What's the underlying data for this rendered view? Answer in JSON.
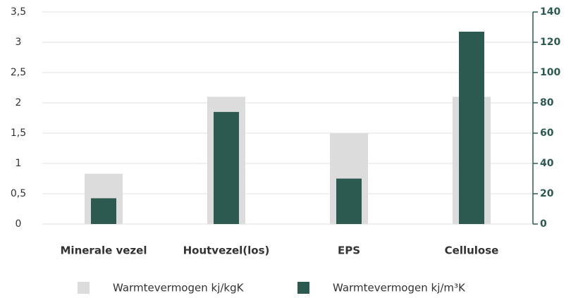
{
  "chart_data": {
    "type": "bar",
    "categories": [
      "Minerale vezel",
      "Houtvezel(los)",
      "EPS",
      "Cellulose"
    ],
    "series": [
      {
        "name": "Warmtevermogen kj/kgK",
        "color": "#dcdcdc",
        "values": [
          0.83,
          2.1,
          1.5,
          2.1
        ]
      },
      {
        "name": "Warmtevermogen kj/m³K",
        "color": "#2c5a50",
        "values": [
          17,
          74,
          30,
          127
        ],
        "axis": "y2"
      }
    ],
    "ylim": [
      0,
      3.5
    ],
    "yticks": [
      0,
      {
        "value": 0.5,
        "label": "0,5"
      },
      1,
      {
        "value": 1.5,
        "label": "1,5"
      },
      2,
      {
        "value": 2.5,
        "label": "2,5"
      },
      3,
      {
        "value": 3.5,
        "label": "3,5"
      }
    ],
    "y2lim": [
      0,
      140
    ],
    "y2ticks": [
      0,
      20,
      40,
      60,
      80,
      100,
      120,
      140
    ],
    "grid": true
  }
}
